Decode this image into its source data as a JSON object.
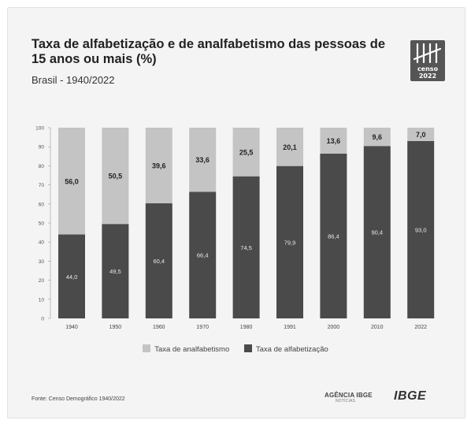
{
  "header": {
    "title": "Taxa de alfabetização e de analfabetismo das pessoas de 15 anos ou mais (%)",
    "subtitle": "Brasil - 1940/2022",
    "logo_text": "censo 2022"
  },
  "footer": {
    "source": "Fonte: Censo Demográfico 1940/2022",
    "agencia": "AGÊNCIA IBGE",
    "agencia_sub": "NOTÍCIAS",
    "ibge": "IBGE"
  },
  "colors": {
    "literacy": "#4a4a4a",
    "illiteracy": "#c4c4c4"
  },
  "chart_data": {
    "type": "bar",
    "stacked": true,
    "categories": [
      "1940",
      "1950",
      "1960",
      "1970",
      "1980",
      "1991",
      "2000",
      "2010",
      "2022"
    ],
    "series": [
      {
        "name": "Taxa de alfabetização",
        "values": [
          44.0,
          49.5,
          60.4,
          66.4,
          74.5,
          79.9,
          86.4,
          90.4,
          93.0
        ],
        "labels": [
          "44,0",
          "49,5",
          "60,4",
          "66,4",
          "74,5",
          "79,9",
          "86,4",
          "90,4",
          "93,0"
        ]
      },
      {
        "name": "Taxa de analfabetismo",
        "values": [
          56.0,
          50.5,
          39.6,
          33.6,
          25.5,
          20.1,
          13.6,
          9.6,
          7.0
        ],
        "labels": [
          "56,0",
          "50,5",
          "39,6",
          "33,6",
          "25,5",
          "20,1",
          "13,6",
          "9,6",
          "7,0"
        ]
      }
    ],
    "yticks": [
      "0",
      "10",
      "20",
      "30",
      "40",
      "50",
      "60",
      "70",
      "80",
      "90",
      "100"
    ],
    "ylim": [
      0,
      100
    ],
    "legend": "bottom-center",
    "grid": false
  }
}
